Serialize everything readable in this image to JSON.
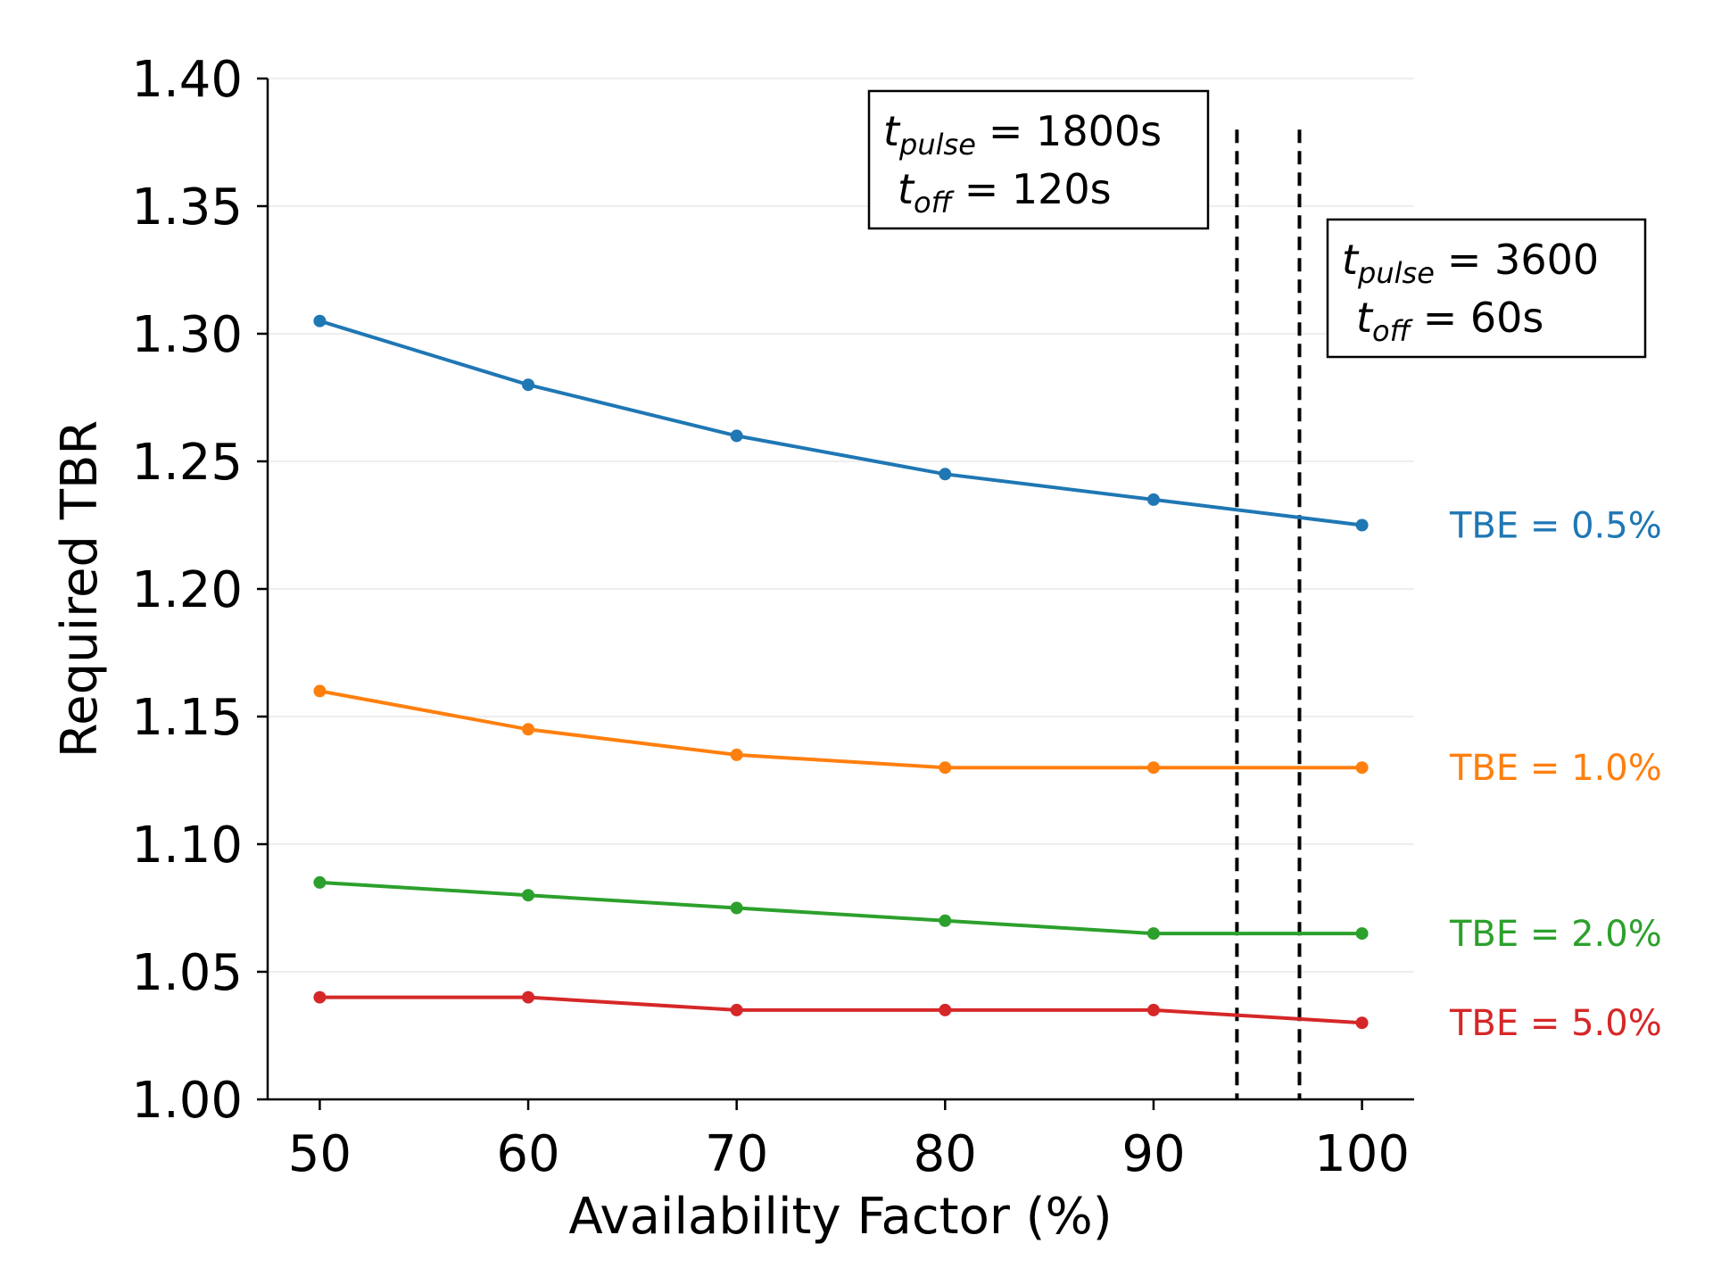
{
  "chart_data": {
    "type": "line",
    "xlabel": "Availability Factor (%)",
    "ylabel": "Required TBR",
    "x": [
      50,
      60,
      70,
      80,
      90,
      100
    ],
    "xlim": [
      47.5,
      102.5
    ],
    "ylim": [
      1.0,
      1.4
    ],
    "xticks": [
      "50",
      "60",
      "70",
      "80",
      "90",
      "100"
    ],
    "yticks": [
      "1.00",
      "1.05",
      "1.10",
      "1.15",
      "1.20",
      "1.25",
      "1.30",
      "1.35",
      "1.40"
    ],
    "grid": "horizontal",
    "series": [
      {
        "name": "TBE = 0.5%",
        "color": "#1f77b4",
        "values": [
          1.305,
          1.28,
          1.26,
          1.245,
          1.235,
          1.225
        ]
      },
      {
        "name": "TBE = 1.0%",
        "color": "#ff7f0e",
        "values": [
          1.16,
          1.145,
          1.135,
          1.13,
          1.13,
          1.13
        ]
      },
      {
        "name": "TBE = 2.0%",
        "color": "#2ca02c",
        "values": [
          1.085,
          1.08,
          1.075,
          1.07,
          1.065,
          1.065
        ]
      },
      {
        "name": "TBE = 5.0%",
        "color": "#d62728",
        "values": [
          1.04,
          1.04,
          1.035,
          1.035,
          1.035,
          1.03
        ]
      }
    ],
    "vlines": [
      {
        "x": 94,
        "style": "dashed"
      },
      {
        "x": 97,
        "style": "dashed"
      }
    ],
    "annotations": [
      {
        "t_label": "t",
        "pulse_sub": "pulse",
        "pulse_value": "= 1800s",
        "off_sub": "off",
        "off_value": "= 120s"
      },
      {
        "t_label": "t",
        "pulse_sub": "pulse",
        "pulse_value": "= 3600",
        "off_sub": "off",
        "off_value": "= 60s"
      }
    ]
  }
}
